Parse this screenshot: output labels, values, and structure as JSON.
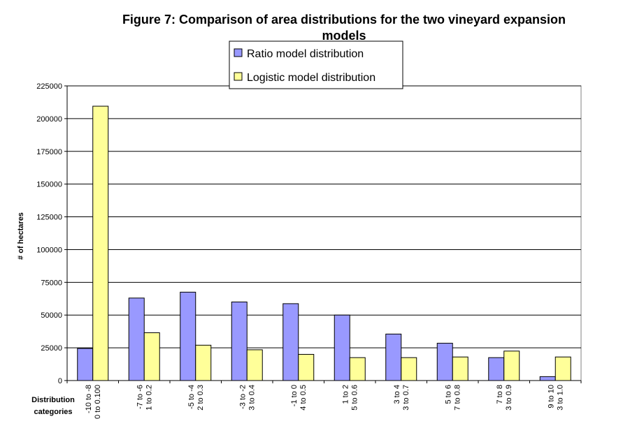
{
  "chart_data": {
    "type": "bar",
    "title_line1": "Figure 7:  Comparison of area distributions for the two vineyard expansion",
    "title_line2": "models",
    "xlabel_line1": "Distribution",
    "xlabel_line2": "categories",
    "ylabel": "# of hectares",
    "ylim": [
      0,
      225000
    ],
    "yticks": [
      0,
      25000,
      50000,
      75000,
      100000,
      125000,
      150000,
      175000,
      200000,
      225000
    ],
    "grid": true,
    "legend_position": "top-center",
    "categories": [
      [
        "-10 to -8",
        "0 to 0.100"
      ],
      [
        "-7 to -6",
        "1 to 0.2"
      ],
      [
        "-5 to -4",
        "2 to 0.3"
      ],
      [
        "-3 to -2",
        "3 to 0.4"
      ],
      [
        "-1 to 0",
        "4 to 0.5"
      ],
      [
        "1 to 2",
        "5 to 0.6"
      ],
      [
        "3 to 4",
        "3 to 0.7"
      ],
      [
        "5 to 6",
        "7 to 0.8"
      ],
      [
        "7 to 8",
        "3 to 0.9"
      ],
      [
        "9 to 10",
        "3 to 1.0"
      ]
    ],
    "series": [
      {
        "name": "Ratio model distribution",
        "color": "#9999ff",
        "values": [
          24500,
          63000,
          67500,
          60000,
          58700,
          50000,
          35500,
          28500,
          17500,
          3000
        ]
      },
      {
        "name": "Logistic model distribution",
        "color": "#ffff99",
        "values": [
          209500,
          36500,
          27000,
          23500,
          20000,
          17500,
          17500,
          18000,
          22500,
          18000
        ]
      }
    ]
  }
}
